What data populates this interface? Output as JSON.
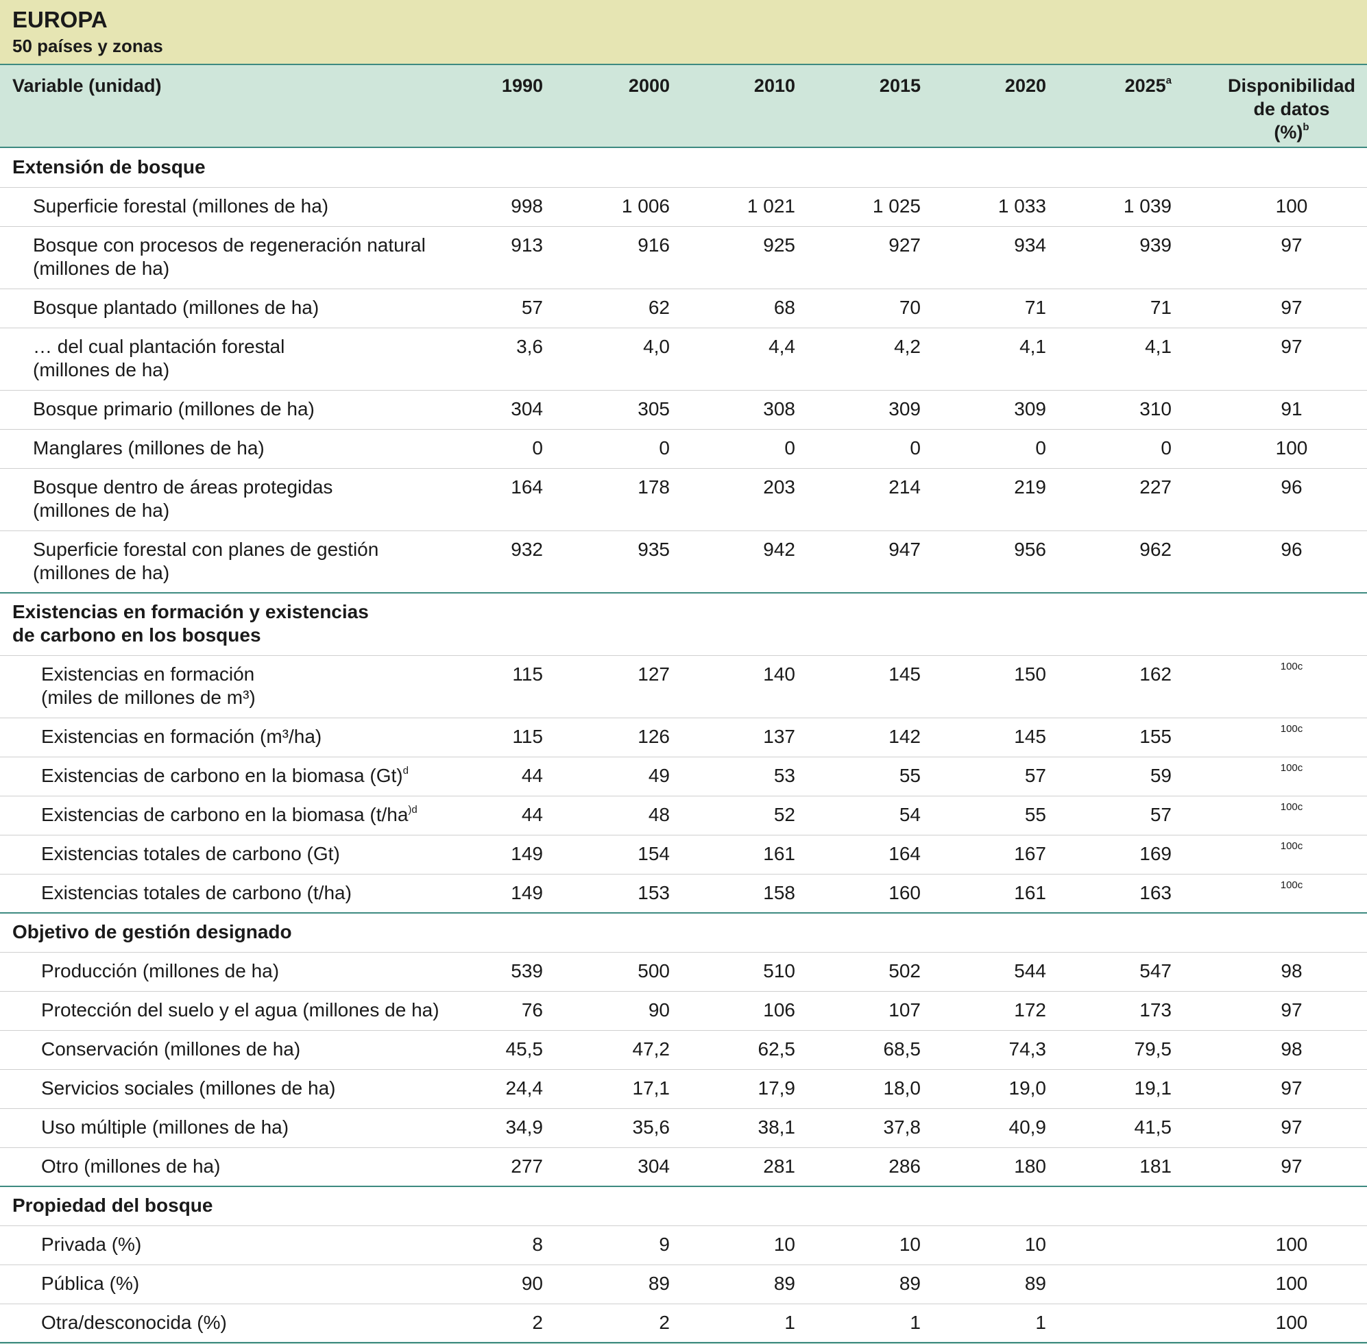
{
  "header": {
    "title": "EUROPA",
    "subtitle": "50 países y zonas"
  },
  "table": {
    "columns": [
      {
        "label": "Variable (unidad)"
      },
      {
        "label": "1990"
      },
      {
        "label": "2000"
      },
      {
        "label": "2010"
      },
      {
        "label": "2015"
      },
      {
        "label": "2020"
      },
      {
        "label": "2025",
        "note": "a"
      },
      {
        "label": [
          "Disponibilidad",
          "de datos",
          "(%)"
        ],
        "note": "b"
      }
    ],
    "sections": [
      {
        "title": [
          "Extensión de bosque"
        ],
        "rows": [
          {
            "label": [
              "Superficie forestal (millones de ha)"
            ],
            "values": [
              "998",
              "1 006",
              "1 021",
              "1 025",
              "1 033",
              "1 039"
            ],
            "availability": "100"
          },
          {
            "label": [
              "Bosque con procesos de regeneración natural",
              "(millones de ha)"
            ],
            "values": [
              "913",
              "916",
              "925",
              "927",
              "934",
              "939"
            ],
            "availability": "97"
          },
          {
            "label": [
              "Bosque plantado (millones de ha)"
            ],
            "values": [
              "57",
              "62",
              "68",
              "70",
              "71",
              "71"
            ],
            "availability": "97"
          },
          {
            "label": [
              "… del cual plantación forestal",
              "(millones de ha)"
            ],
            "values": [
              "3,6",
              "4,0",
              "4,4",
              "4,2",
              "4,1",
              "4,1"
            ],
            "availability": "97"
          },
          {
            "label": [
              "Bosque primario (millones de ha)"
            ],
            "values": [
              "304",
              "305",
              "308",
              "309",
              "309",
              "310"
            ],
            "availability": "91"
          },
          {
            "label": [
              "Manglares (millones de ha)"
            ],
            "values": [
              "0",
              "0",
              "0",
              "0",
              "0",
              "0"
            ],
            "availability": "100"
          },
          {
            "label": [
              "Bosque dentro de áreas protegidas",
              "(millones de ha)"
            ],
            "values": [
              "164",
              "178",
              "203",
              "214",
              "219",
              "227"
            ],
            "availability": "96"
          },
          {
            "label": [
              "Superficie forestal con planes de gestión",
              "(millones de ha)"
            ],
            "values": [
              "932",
              "935",
              "942",
              "947",
              "956",
              "962"
            ],
            "availability": "96"
          }
        ]
      },
      {
        "title": [
          "Existencias en formación y existencias",
          "de carbono en los bosques"
        ],
        "rows": [
          {
            "label": [
              "Existencias en formación",
              "(miles de millones de m³)"
            ],
            "values": [
              "115",
              "127",
              "140",
              "145",
              "150",
              "162"
            ],
            "availability": "100c"
          },
          {
            "label": [
              "Existencias en formación (m³/ha)"
            ],
            "values": [
              "115",
              "126",
              "137",
              "142",
              "145",
              "155"
            ],
            "availability": "100c"
          },
          {
            "label": [
              "Existencias de carbono en la biomasa (Gt)"
            ],
            "note": "d",
            "values": [
              "44",
              "49",
              "53",
              "55",
              "57",
              "59"
            ],
            "availability": "100c"
          },
          {
            "label": [
              "Existencias de carbono en la biomasa (t/ha"
            ],
            "note": ")d",
            "values": [
              "44",
              "48",
              "52",
              "54",
              "55",
              "57"
            ],
            "availability": "100c"
          },
          {
            "label": [
              "Existencias totales de carbono (Gt)"
            ],
            "values": [
              "149",
              "154",
              "161",
              "164",
              "167",
              "169"
            ],
            "availability": "100c"
          },
          {
            "label": [
              "Existencias totales de carbono (t/ha)"
            ],
            "values": [
              "149",
              "153",
              "158",
              "160",
              "161",
              "163"
            ],
            "availability": "100c"
          }
        ]
      },
      {
        "title": [
          "Objetivo de gestión designado"
        ],
        "rows": [
          {
            "label": [
              "Producción (millones de ha)"
            ],
            "values": [
              "539",
              "500",
              "510",
              "502",
              "544",
              "547"
            ],
            "availability": "98"
          },
          {
            "label": [
              "Protección del suelo y el agua (millones de ha)"
            ],
            "values": [
              "76",
              "90",
              "106",
              "107",
              "172",
              "173"
            ],
            "availability": "97"
          },
          {
            "label": [
              "Conservación (millones de ha)"
            ],
            "values": [
              "45,5",
              "47,2",
              "62,5",
              "68,5",
              "74,3",
              "79,5"
            ],
            "availability": "98"
          },
          {
            "label": [
              "Servicios sociales (millones de ha)"
            ],
            "values": [
              "24,4",
              "17,1",
              "17,9",
              "18,0",
              "19,0",
              "19,1"
            ],
            "availability": "97"
          },
          {
            "label": [
              "Uso múltiple (millones de ha)"
            ],
            "values": [
              "34,9",
              "35,6",
              "38,1",
              "37,8",
              "40,9",
              "41,5"
            ],
            "availability": "97"
          },
          {
            "label": [
              "Otro (millones de ha)"
            ],
            "values": [
              "277",
              "304",
              "281",
              "286",
              "180",
              "181"
            ],
            "availability": "97"
          }
        ]
      },
      {
        "title": [
          "Propiedad del bosque"
        ],
        "rows": [
          {
            "label": [
              "Privada (%)"
            ],
            "values": [
              "8",
              "9",
              "10",
              "10",
              "10",
              null
            ],
            "availability": "100"
          },
          {
            "label": [
              "Pública (%)"
            ],
            "values": [
              "90",
              "89",
              "89",
              "89",
              "89",
              null
            ],
            "availability": "100"
          },
          {
            "label": [
              "Otra/desconocida (%)"
            ],
            "values": [
              "2",
              "2",
              "1",
              "1",
              "1",
              null
            ],
            "availability": "100"
          }
        ]
      }
    ]
  }
}
